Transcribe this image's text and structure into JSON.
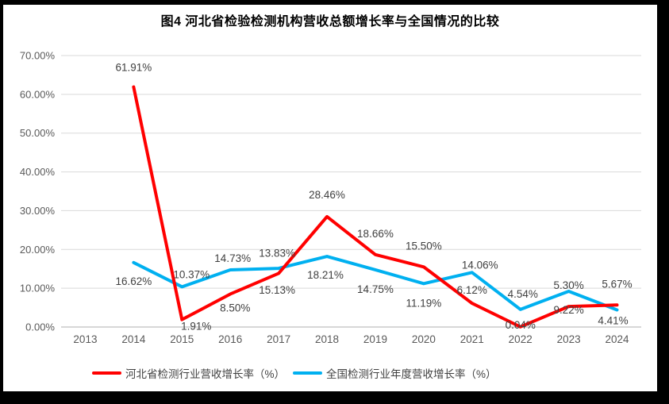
{
  "title": "图4 河北省检验检测机构营收总额增长率与全国情况的比较",
  "chart_data": {
    "type": "line",
    "categories": [
      "2013",
      "2014",
      "2015",
      "2016",
      "2017",
      "2018",
      "2019",
      "2020",
      "2021",
      "2022",
      "2023",
      "2024"
    ],
    "series": [
      {
        "name": "河北省检测行业营收增长率（%）",
        "color": "#FF0000",
        "values": [
          null,
          61.91,
          1.91,
          8.5,
          13.83,
          28.46,
          18.66,
          15.5,
          6.12,
          0.04,
          5.3,
          5.67
        ],
        "labels": [
          "",
          "61.91%",
          "1.91%",
          "8.50%",
          "13.83%",
          "28.46%",
          "18.66%",
          "15.50%",
          "6.12%",
          "0.04%",
          "5.30%",
          "5.67%"
        ],
        "label_offsets": [
          null,
          [
            0,
            -20
          ],
          [
            18,
            13
          ],
          [
            6,
            22
          ],
          [
            -2,
            -21
          ],
          [
            0,
            -23
          ],
          [
            0,
            -22
          ],
          [
            0,
            -22
          ],
          [
            0,
            -12
          ],
          [
            0,
            2
          ],
          [
            0,
            -22
          ],
          [
            0,
            -22
          ]
        ]
      },
      {
        "name": "全国检测行业年度营收增长率（%）",
        "color": "#00B0F0",
        "values": [
          null,
          16.62,
          10.37,
          14.73,
          15.13,
          18.21,
          14.75,
          11.19,
          14.06,
          4.54,
          9.22,
          4.41
        ],
        "labels": [
          "",
          "16.62%",
          "10.37%",
          "14.73%",
          "15.13%",
          "18.21%",
          "14.75%",
          "11.19%",
          "14.06%",
          "4.54%",
          "9.22%",
          "4.41%"
        ],
        "label_offsets": [
          null,
          [
            0,
            28
          ],
          [
            12,
            -11
          ],
          [
            3,
            -10
          ],
          [
            -2,
            32
          ],
          [
            -2,
            28
          ],
          [
            0,
            29
          ],
          [
            0,
            29
          ],
          [
            10,
            -5
          ],
          [
            3,
            -15
          ],
          [
            0,
            28
          ],
          [
            -5,
            18
          ]
        ]
      }
    ],
    "yticks": [
      "0.00%",
      "10.00%",
      "20.00%",
      "30.00%",
      "40.00%",
      "50.00%",
      "60.00%",
      "70.00%"
    ],
    "ylim": [
      0,
      70
    ],
    "grid": true,
    "legend_position": "bottom",
    "colors": {
      "gridline": "#D9D9D9",
      "axis_line": "#BFBFBF",
      "tick_text": "#595959",
      "data_label_text": "#404040",
      "frame": "#000000",
      "background": "#FFFFFF"
    }
  }
}
